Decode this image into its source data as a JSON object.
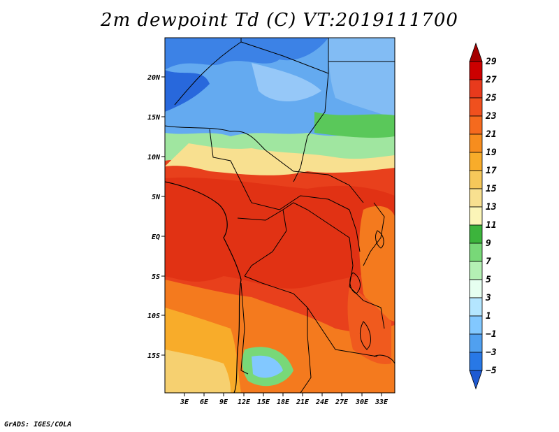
{
  "title": "2m dewpoint Td (C) VT:2019111700",
  "footer": "GrADS: IGES/COLA",
  "map": {
    "lat_labels": [
      "20N",
      "15N",
      "10N",
      "5N",
      "EQ",
      "5S",
      "10S",
      "15S"
    ],
    "lon_labels": [
      "3E",
      "6E",
      "9E",
      "12E",
      "15E",
      "18E",
      "21E",
      "24E",
      "27E",
      "30E",
      "33E"
    ],
    "lat_range": [
      -19.5,
      24.5
    ],
    "lon_range": [
      0,
      35
    ],
    "variable": "2m dewpoint temperature",
    "units": "C"
  },
  "colorbar": {
    "labels": [
      "29",
      "27",
      "25",
      "23",
      "21",
      "19",
      "17",
      "15",
      "13",
      "11",
      "9",
      "7",
      "5",
      "3",
      "1",
      "−1",
      "−3",
      "−5"
    ],
    "colors": [
      "#a50000",
      "#cc0000",
      "#e83a1c",
      "#f0501e",
      "#f56a1e",
      "#f78d1e",
      "#f8ac2a",
      "#f6c85a",
      "#f8e090",
      "#fbf5b8",
      "#3cb43c",
      "#78d878",
      "#b4f0b4",
      "#e6fff0",
      "#b4e6ff",
      "#82c8ff",
      "#50a0f0",
      "#2878e6",
      "#1e5ad2"
    ]
  },
  "legend_scale": [
    29,
    27,
    25,
    23,
    21,
    19,
    17,
    15,
    13,
    11,
    9,
    7,
    5,
    3,
    1,
    -1,
    -3,
    -5
  ]
}
